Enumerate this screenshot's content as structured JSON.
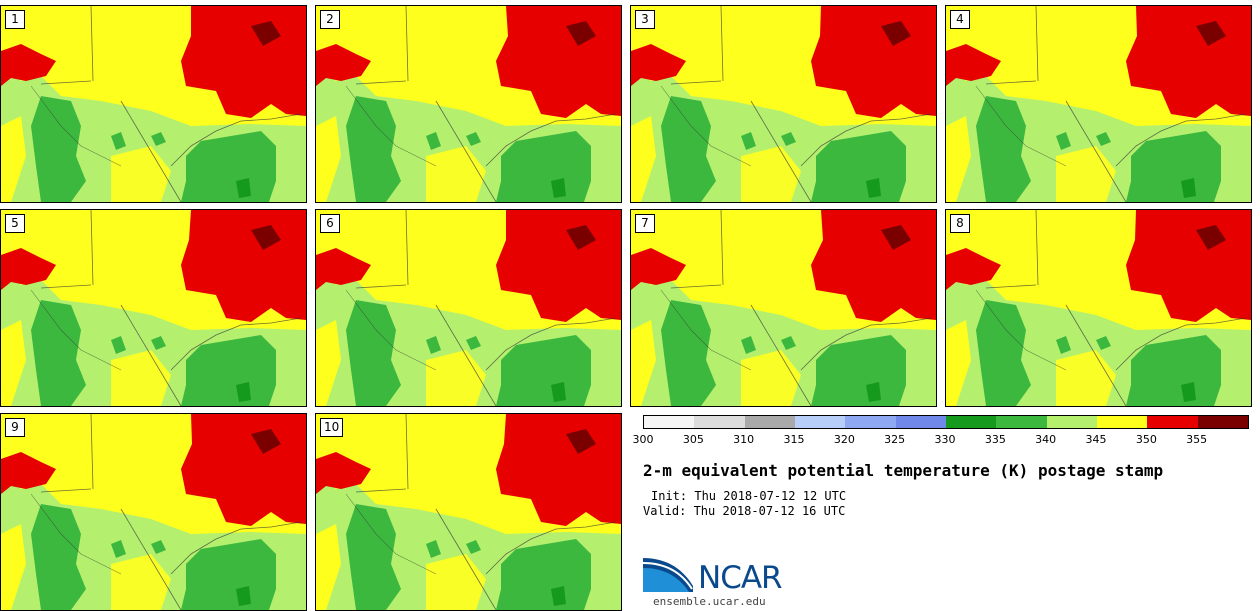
{
  "members": [
    "1",
    "2",
    "3",
    "4",
    "5",
    "6",
    "7",
    "8",
    "9",
    "10"
  ],
  "colorbar": {
    "colors": [
      "#f5f5f5",
      "#dcdcdc",
      "#a9a9a9",
      "#b7cff8",
      "#8ea9f2",
      "#6f88ea",
      "#159a1e",
      "#3cb83f",
      "#b4f06e",
      "#ffff1e",
      "#e60000",
      "#7a0000"
    ],
    "labels": [
      "300",
      "305",
      "310",
      "315",
      "320",
      "325",
      "330",
      "335",
      "340",
      "345",
      "350",
      "355"
    ]
  },
  "title": "2-m equivalent potential temperature (K) postage stamp",
  "init": "Init: Thu 2018-07-12 12 UTC",
  "valid": "Valid: Thu 2018-07-12 16 UTC",
  "logo": {
    "name": "NCAR",
    "url": "ensemble.ucar.edu"
  },
  "field_colors": {
    "light_green": "#b4f06e",
    "green": "#3cb83f",
    "dark_green": "#159a1e",
    "yellow": "#ffff1e",
    "red": "#e60000",
    "dark_red": "#7a0000"
  }
}
